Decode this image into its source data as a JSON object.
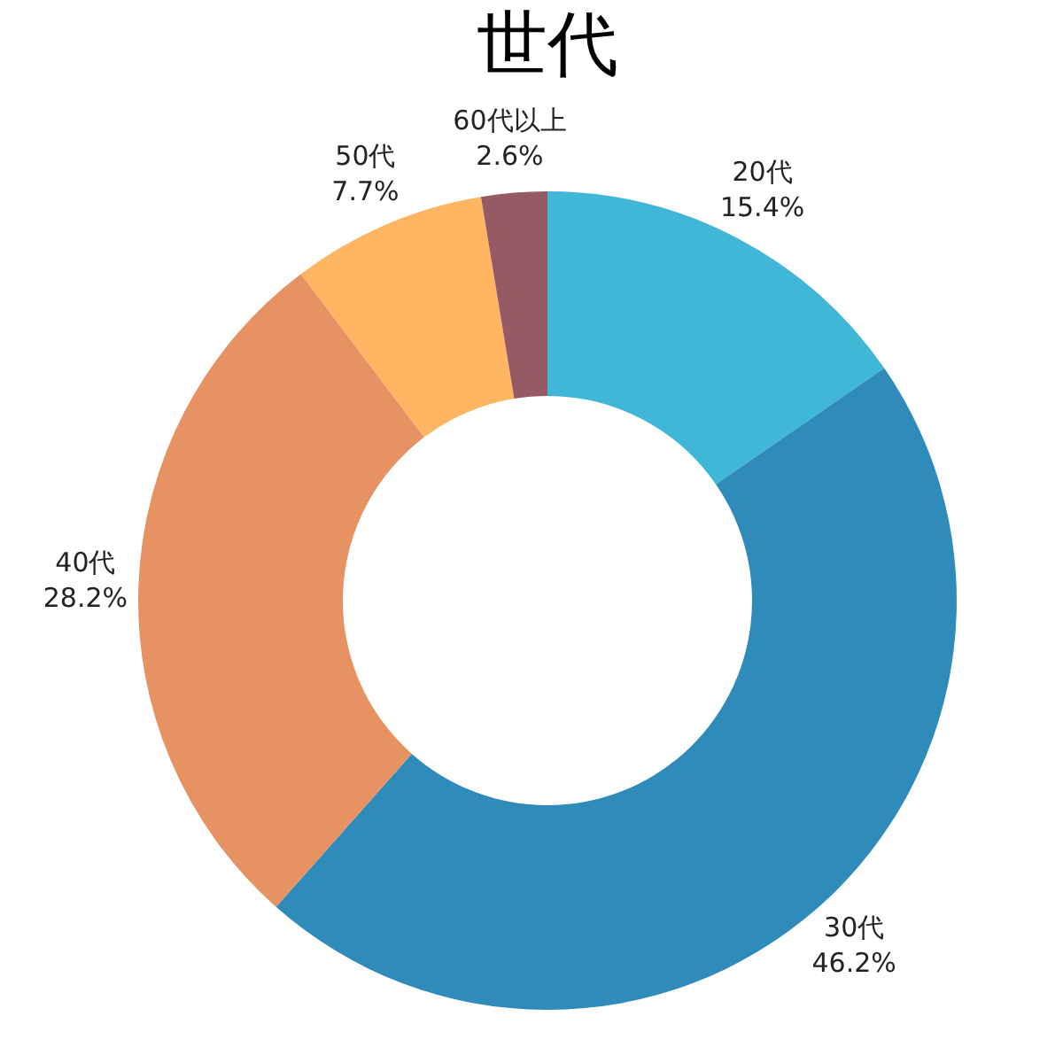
{
  "chart_data": {
    "type": "donut",
    "title": "世代",
    "categories": [
      "20代",
      "30代",
      "40代",
      "50代",
      "60代以上"
    ],
    "values": [
      15.4,
      46.2,
      28.2,
      7.7,
      2.6
    ],
    "value_labels": [
      "15.4%",
      "46.2%",
      "28.2%",
      "7.7%",
      "2.6%"
    ],
    "colors": [
      "#41b7d7",
      "#2e8bba",
      "#e69262",
      "#ffb562",
      "#955a63"
    ],
    "legend": false
  }
}
